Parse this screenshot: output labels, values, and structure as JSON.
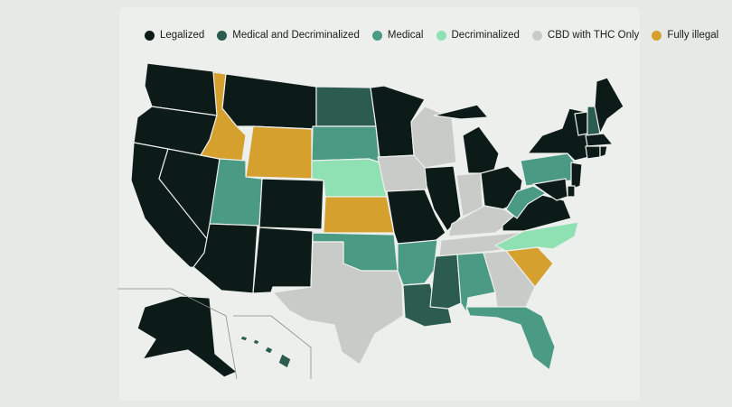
{
  "legend": [
    {
      "label": "Legalized",
      "color": "#0d1b18"
    },
    {
      "label": "Medical and Decriminalized",
      "color": "#2c5c4f"
    },
    {
      "label": "Medical",
      "color": "#4a9a84"
    },
    {
      "label": "Decriminalized",
      "color": "#8fe0b2"
    },
    {
      "label": "CBD with THC Only",
      "color": "#c9cbc8"
    },
    {
      "label": "Fully illegal",
      "color": "#d6a02e"
    }
  ],
  "states": [
    {
      "name": "WA",
      "status": "Legalized"
    },
    {
      "name": "OR",
      "status": "Legalized"
    },
    {
      "name": "CA",
      "status": "Legalized"
    },
    {
      "name": "NV",
      "status": "Legalized"
    },
    {
      "name": "ID",
      "status": "Fully illegal"
    },
    {
      "name": "MT",
      "status": "Legalized"
    },
    {
      "name": "WY",
      "status": "Fully illegal"
    },
    {
      "name": "UT",
      "status": "Medical"
    },
    {
      "name": "AZ",
      "status": "Legalized"
    },
    {
      "name": "CO",
      "status": "Legalized"
    },
    {
      "name": "NM",
      "status": "Legalized"
    },
    {
      "name": "ND",
      "status": "Medical and Decriminalized"
    },
    {
      "name": "SD",
      "status": "Medical"
    },
    {
      "name": "NE",
      "status": "Decriminalized"
    },
    {
      "name": "KS",
      "status": "Fully illegal"
    },
    {
      "name": "OK",
      "status": "Medical"
    },
    {
      "name": "TX",
      "status": "CBD with THC Only"
    },
    {
      "name": "MN",
      "status": "Legalized"
    },
    {
      "name": "IA",
      "status": "CBD with THC Only"
    },
    {
      "name": "MO",
      "status": "Legalized"
    },
    {
      "name": "AR",
      "status": "Medical"
    },
    {
      "name": "LA",
      "status": "Medical and Decriminalized"
    },
    {
      "name": "WI",
      "status": "CBD with THC Only"
    },
    {
      "name": "IL",
      "status": "Legalized"
    },
    {
      "name": "MI",
      "status": "Legalized"
    },
    {
      "name": "IN",
      "status": "CBD with THC Only"
    },
    {
      "name": "OH",
      "status": "Legalized"
    },
    {
      "name": "KY",
      "status": "CBD with THC Only"
    },
    {
      "name": "TN",
      "status": "CBD with THC Only"
    },
    {
      "name": "MS",
      "status": "Medical and Decriminalized"
    },
    {
      "name": "AL",
      "status": "Medical"
    },
    {
      "name": "GA",
      "status": "CBD with THC Only"
    },
    {
      "name": "FL",
      "status": "Medical"
    },
    {
      "name": "SC",
      "status": "Fully illegal"
    },
    {
      "name": "NC",
      "status": "Decriminalized"
    },
    {
      "name": "VA",
      "status": "Legalized"
    },
    {
      "name": "WV",
      "status": "Medical"
    },
    {
      "name": "PA",
      "status": "Medical"
    },
    {
      "name": "NY",
      "status": "Legalized"
    },
    {
      "name": "VT",
      "status": "Legalized"
    },
    {
      "name": "NH",
      "status": "Medical and Decriminalized"
    },
    {
      "name": "ME",
      "status": "Legalized"
    },
    {
      "name": "MA",
      "status": "Legalized"
    },
    {
      "name": "CT",
      "status": "Legalized"
    },
    {
      "name": "RI",
      "status": "Legalized"
    },
    {
      "name": "NJ",
      "status": "Legalized"
    },
    {
      "name": "DE",
      "status": "Legalized"
    },
    {
      "name": "MD",
      "status": "Legalized"
    },
    {
      "name": "AK",
      "status": "Legalized"
    },
    {
      "name": "HI",
      "status": "Medical and Decriminalized"
    }
  ]
}
